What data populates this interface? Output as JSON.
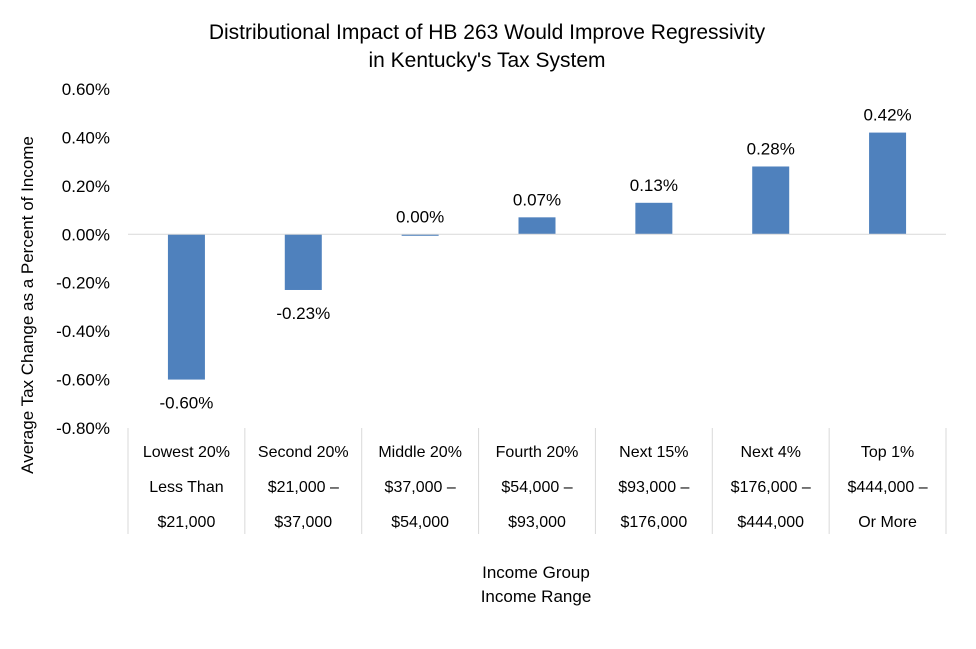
{
  "chart_data": {
    "type": "bar",
    "title": "Distributional Impact of HB 263 Would Improve Regressivity",
    "subtitle": "in Kentucky's Tax System",
    "ylabel": "Average Tax Change as a Percent of Income",
    "xlabel": "Income Group",
    "xlabel2": "Income Range",
    "ylim": [
      -0.8,
      0.6
    ],
    "yticks": [
      0.6,
      0.4,
      0.2,
      0.0,
      -0.2,
      -0.4,
      -0.6,
      -0.8
    ],
    "ytick_labels": [
      "0.60%",
      "0.40%",
      "0.20%",
      "0.00%",
      "-0.20%",
      "-0.40%",
      "-0.60%",
      "-0.80%"
    ],
    "grid": false,
    "bar_color": "#4F81BD",
    "categories": [
      {
        "group": "Lowest 20%",
        "range1": "Less Than",
        "range2": "$21,000"
      },
      {
        "group": "Second 20%",
        "range1": "$21,000 –",
        "range2": "$37,000"
      },
      {
        "group": "Middle 20%",
        "range1": "$37,000 –",
        "range2": "$54,000"
      },
      {
        "group": "Fourth 20%",
        "range1": "$54,000 –",
        "range2": "$93,000"
      },
      {
        "group": "Next 15%",
        "range1": "$93,000 –",
        "range2": "$176,000"
      },
      {
        "group": "Next 4%",
        "range1": "$176,000 –",
        "range2": "$444,000"
      },
      {
        "group": "Top 1%",
        "range1": "$444,000 –",
        "range2": "Or More"
      }
    ],
    "values": [
      -0.6,
      -0.23,
      0.0,
      0.07,
      0.13,
      0.28,
      0.42
    ],
    "data_labels": [
      "-0.60%",
      "-0.23%",
      "0.00%",
      "0.07%",
      "0.13%",
      "0.28%",
      "0.42%"
    ]
  }
}
